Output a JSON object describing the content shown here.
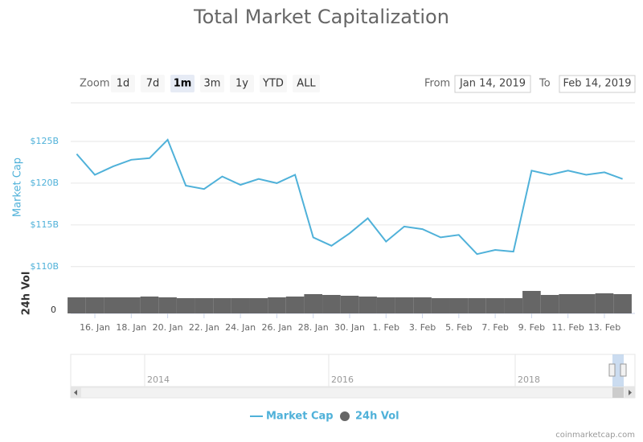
{
  "chart_data": {
    "type": "line",
    "title": "Total Market Capitalization",
    "y_label": "Market Cap",
    "y2_label": "24h Vol",
    "categories": [
      null,
      "16. Jan",
      null,
      "18. Jan",
      null,
      "20. Jan",
      null,
      "22. Jan",
      null,
      "24. Jan",
      null,
      "26. Jan",
      null,
      "28. Jan",
      null,
      "30. Jan",
      null,
      "1. Feb",
      null,
      "3. Feb",
      null,
      "5. Feb",
      null,
      "7. Feb",
      null,
      "9. Feb",
      null,
      "11. Feb",
      null,
      "13. Feb",
      null
    ],
    "series": [
      {
        "name": "Market Cap",
        "color": "#4fb1d9",
        "values": [
          123.5,
          121,
          122,
          122.8,
          123,
          125.2,
          119.7,
          119.3,
          120.8,
          119.8,
          120.5,
          120,
          121,
          113.5,
          112.5,
          114,
          115.8,
          113,
          114.8,
          114.5,
          113.5,
          113.8,
          111.5,
          112,
          111.8,
          121.5,
          121,
          121.5,
          121,
          121.3,
          120.5
        ]
      },
      {
        "name": "24h Vol",
        "color": "#666666",
        "axis": "y2",
        "values": [
          20,
          20,
          20,
          20,
          21,
          20,
          19,
          19,
          19,
          19,
          19,
          20,
          21,
          24,
          23,
          22,
          21,
          20,
          20,
          20,
          19,
          19,
          19,
          19,
          19,
          28,
          23,
          24,
          24,
          25,
          24
        ]
      }
    ],
    "ylim": [
      109.5,
      127.5
    ],
    "yticks": [
      {
        "value": 110,
        "label": "$110B"
      },
      {
        "value": 115,
        "label": "$115B"
      },
      {
        "value": 120,
        "label": "$120B"
      },
      {
        "value": 125,
        "label": "$125B"
      }
    ],
    "y2lim": [
      0,
      50
    ],
    "y2ticks": [
      0
    ],
    "grid": true
  },
  "range_selector": {
    "zoom_label": "Zoom",
    "buttons": [
      "1d",
      "7d",
      "1m",
      "3m",
      "1y",
      "YTD",
      "ALL"
    ],
    "selected": "1m",
    "from_label": "From",
    "from": "Jan 14, 2019",
    "to_label": "To",
    "to": "Feb 14, 2019"
  },
  "navigator": {
    "labels": [
      "2014",
      "2016",
      "2018"
    ]
  },
  "credit": "coinmarketcap.com"
}
